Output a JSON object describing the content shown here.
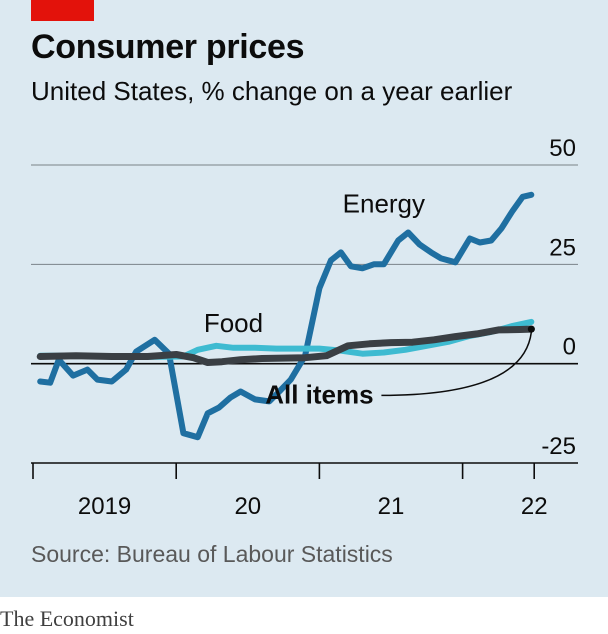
{
  "header": {
    "title": "Consumer prices",
    "subtitle": "United States, % change on a year earlier"
  },
  "source": "Source: Bureau of Labour Statistics",
  "brand": "The Economist",
  "colors": {
    "background": "#dce9f1",
    "accent": "#e3120b",
    "energy": "#1f6fa1",
    "food": "#3ebbd1",
    "all_items": "#3a3f44",
    "grid": "#7a8288"
  },
  "chart_data": {
    "type": "line",
    "title": "Consumer prices",
    "subtitle": "United States, % change on a year earlier",
    "ylim": [
      -25,
      50
    ],
    "yticks": [
      {
        "value": 50,
        "label": "50"
      },
      {
        "value": 25,
        "label": "25"
      },
      {
        "value": 0,
        "label": "0"
      },
      {
        "value": -25,
        "label": "-25"
      }
    ],
    "xlim": [
      2019.0,
      2022.75
    ],
    "xticks": [
      2019,
      2020,
      2021,
      2022,
      2022.5
    ],
    "xlabels": [
      {
        "x": 2019.5,
        "label": "2019"
      },
      {
        "x": 2020.5,
        "label": "20"
      },
      {
        "x": 2021.5,
        "label": "21"
      },
      {
        "x": 2022.5,
        "label": "22"
      }
    ],
    "grid": true,
    "legend": "inline labels",
    "series": [
      {
        "name": "Energy",
        "key": "energy",
        "label_at": {
          "x": 2021.45,
          "y": 38
        },
        "x": [
          2019.05,
          2019.12,
          2019.18,
          2019.28,
          2019.38,
          2019.45,
          2019.55,
          2019.65,
          2019.72,
          2019.85,
          2019.95,
          2020.05,
          2020.15,
          2020.22,
          2020.3,
          2020.38,
          2020.45,
          2020.55,
          2020.65,
          2020.72,
          2020.8,
          2020.9,
          2021.0,
          2021.08,
          2021.15,
          2021.22,
          2021.3,
          2021.38,
          2021.45,
          2021.55,
          2021.62,
          2021.7,
          2021.78,
          2021.85,
          2021.95,
          2022.05,
          2022.12,
          2022.2,
          2022.27,
          2022.35,
          2022.42,
          2022.48
        ],
        "values": [
          -4.5,
          -4.8,
          1.0,
          -3.0,
          -1.5,
          -4.0,
          -4.5,
          -1.5,
          3.0,
          6.0,
          2.5,
          -17.5,
          -18.5,
          -12.5,
          -11.0,
          -8.5,
          -7.0,
          -9.0,
          -9.5,
          -7.0,
          -4.0,
          2.0,
          19.0,
          26.0,
          28.0,
          24.5,
          24.0,
          25.0,
          25.0,
          31.0,
          33.0,
          30.0,
          28.0,
          26.5,
          25.5,
          31.5,
          30.5,
          31.0,
          34.0,
          38.5,
          42.0,
          42.5
        ]
      },
      {
        "name": "Food",
        "key": "food",
        "label_at": {
          "x": 2020.4,
          "y": 8
        },
        "x": [
          2019.05,
          2019.3,
          2019.55,
          2019.8,
          2020.05,
          2020.15,
          2020.28,
          2020.4,
          2020.55,
          2020.7,
          2020.85,
          2021.0,
          2021.15,
          2021.3,
          2021.45,
          2021.6,
          2021.75,
          2021.9,
          2022.05,
          2022.2,
          2022.35,
          2022.48
        ],
        "values": [
          2.0,
          2.0,
          1.8,
          1.7,
          1.8,
          3.5,
          4.5,
          4.0,
          4.0,
          3.8,
          3.8,
          3.8,
          3.3,
          2.5,
          2.8,
          3.5,
          4.5,
          5.5,
          7.0,
          8.0,
          9.5,
          10.5
        ]
      },
      {
        "name": "All items",
        "key": "all_items",
        "label_at": {
          "x": 2021.0,
          "y": -10
        },
        "x": [
          2019.05,
          2019.3,
          2019.55,
          2019.8,
          2020.0,
          2020.12,
          2020.22,
          2020.32,
          2020.45,
          2020.6,
          2020.75,
          2020.9,
          2021.05,
          2021.2,
          2021.35,
          2021.5,
          2021.65,
          2021.8,
          2021.95,
          2022.1,
          2022.25,
          2022.4,
          2022.48
        ],
        "values": [
          1.8,
          2.0,
          1.8,
          1.8,
          2.3,
          1.5,
          0.3,
          0.5,
          1.0,
          1.3,
          1.4,
          1.5,
          2.0,
          4.5,
          5.0,
          5.3,
          5.4,
          6.0,
          6.8,
          7.5,
          8.5,
          8.6,
          8.7
        ]
      }
    ]
  }
}
